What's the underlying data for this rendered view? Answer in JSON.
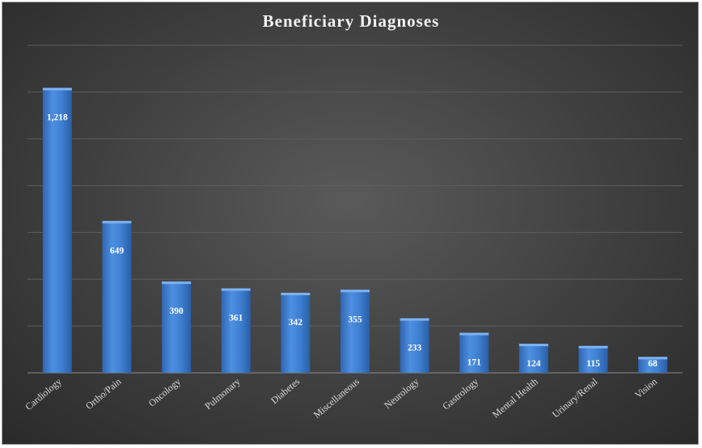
{
  "chart_data": {
    "type": "bar",
    "title": "Beneficiary Diagnoses",
    "categories": [
      "Cardiology",
      "Ortho/Pain",
      "Oncology",
      "Pulmonary",
      "Diabetes",
      "Miscellaneous",
      "Neurology",
      "Gastrology",
      "Mental Health",
      "Urinary/Renal",
      "Vision"
    ],
    "values": [
      1218,
      649,
      390,
      361,
      342,
      355,
      233,
      171,
      124,
      115,
      68
    ],
    "data_labels": [
      "1,218",
      "649",
      "390",
      "361",
      "342",
      "355",
      "233",
      "171",
      "124",
      "115",
      "68"
    ],
    "ylim": [
      0,
      1400
    ],
    "grid": true,
    "bar_color": "#3f7fd1",
    "background_color": "#3f3f3f"
  }
}
